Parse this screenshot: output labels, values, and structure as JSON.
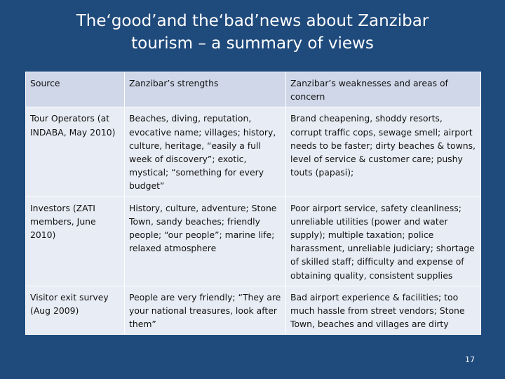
{
  "slide": {
    "title_line1": "The‘good’and the‘bad’news about Zanzibar",
    "title_line2": "tourism – a summary of views",
    "page_number": "17"
  },
  "table": {
    "headers": [
      "Source",
      "Zanzibar’s strengths",
      "Zanzibar’s weaknesses and areas of concern"
    ],
    "rows": [
      {
        "source": "Tour Operators (at INDABA, May 2010)",
        "strengths": "Beaches, diving, reputation, evocative name; villages; history, culture, heritage, “easily a full week of discovery”; exotic, mystical; “something for every budget”",
        "weaknesses": "Brand cheapening, shoddy resorts, corrupt traffic cops, sewage smell; airport needs to be faster; dirty beaches & towns, level of service & customer care; pushy touts (papasi);"
      },
      {
        "source": "Investors (ZATI members, June 2010)",
        "strengths": "History, culture, adventure; Stone Town, sandy beaches; friendly people; “our people”; marine life; relaxed atmosphere",
        "weaknesses": "Poor airport service, safety cleanliness; unreliable utilities (power and water supply); multiple taxation; police harassment, unreliable judiciary; shortage of skilled staff; difficulty and expense of obtaining quality, consistent supplies"
      },
      {
        "source": "Visitor exit survey (Aug 2009)",
        "strengths": "People are very friendly; “They are your national treasures, look after them”",
        "weaknesses": "Bad airport experience & facilities; too much hassle from street vendors; Stone Town, beaches and villages are dirty"
      }
    ]
  }
}
